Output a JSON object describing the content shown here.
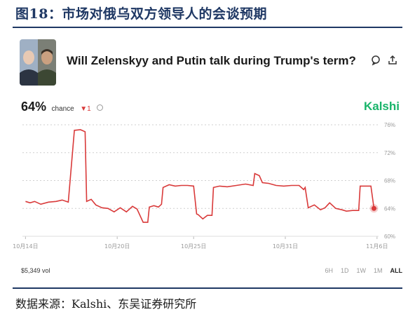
{
  "figure_title": "图18：市场对俄乌双方领导人的会谈预期",
  "source": "数据来源：Kalshi、东吴证券研究所",
  "market": {
    "question": "Will Zelenskyy and Putin talk during Trump's term?",
    "chance_value": "64%",
    "chance_label": "chance",
    "delta": "▼1",
    "brand": "Kalshi",
    "volume": "$5,349 vol",
    "ranges": [
      "6H",
      "1D",
      "1W",
      "1M",
      "ALL"
    ],
    "active_range": "ALL"
  },
  "colors": {
    "line": "#d93a3a",
    "brand": "#18b46a",
    "title": "#1f3864",
    "grid": "#cfcfcf"
  },
  "icons": [
    "avatar-image-icon",
    "comment-icon",
    "share-icon",
    "info-icon"
  ],
  "chart_data": {
    "type": "line",
    "title": "",
    "xlabel": "",
    "ylabel": "",
    "ylim": [
      60,
      76
    ],
    "yticks": [
      76,
      72,
      68,
      64,
      60
    ],
    "ytick_labels": [
      "76%",
      "72%",
      "68%",
      "64%",
      "60%"
    ],
    "xticks": [
      0,
      6,
      11,
      17,
      23
    ],
    "xtick_labels": [
      "10月14日",
      "10月20日",
      "10月25日",
      "10月31日",
      "11月6日"
    ],
    "xlim": [
      -0.2,
      23.1
    ],
    "grid": true,
    "series": [
      {
        "x": [
          0,
          0.3,
          0.6,
          1.0,
          1.5,
          2.0,
          2.4,
          2.8,
          3.2,
          3.6,
          3.9,
          4.0,
          4.3,
          4.6,
          4.9,
          5.0,
          5.4,
          5.8,
          6.2,
          6.6,
          7.0,
          7.3,
          7.7,
          8.0,
          8.1,
          8.4,
          8.7,
          8.9,
          9.0,
          9.4,
          9.8,
          10.2,
          10.6,
          11.0,
          11.2,
          11.3,
          11.6,
          11.9,
          12.2,
          12.3,
          12.7,
          13.2,
          13.8,
          14.4,
          14.9,
          15.0,
          15.3,
          15.5,
          15.9,
          16.4,
          16.9,
          17.4,
          17.9,
          18.2,
          18.3,
          18.5,
          18.9,
          19.3,
          19.6,
          19.9,
          20.3,
          20.7,
          21.0,
          21.4,
          21.8,
          21.9,
          22.3,
          22.6,
          22.8
        ],
        "y": [
          65,
          64.8,
          65,
          64.6,
          64.9,
          65,
          65.2,
          64.9,
          75.2,
          75.3,
          75,
          65,
          65.3,
          64.5,
          64.2,
          64.1,
          64,
          63.5,
          64.1,
          63.5,
          64.3,
          63.9,
          62,
          62,
          64.2,
          64.4,
          64.2,
          64.6,
          67,
          67.4,
          67.2,
          67.3,
          67.3,
          67.2,
          63.2,
          63.1,
          62.5,
          63,
          63,
          67,
          67.2,
          67.1,
          67.3,
          67.5,
          67.3,
          69,
          68.7,
          67.7,
          67.6,
          67.3,
          67.2,
          67.3,
          67.3,
          66.7,
          67,
          64.1,
          64.5,
          63.8,
          64.1,
          64.8,
          64,
          63.8,
          63.6,
          63.7,
          63.7,
          67.2,
          67.2,
          67.2,
          64
        ]
      }
    ],
    "current_value": 64
  }
}
